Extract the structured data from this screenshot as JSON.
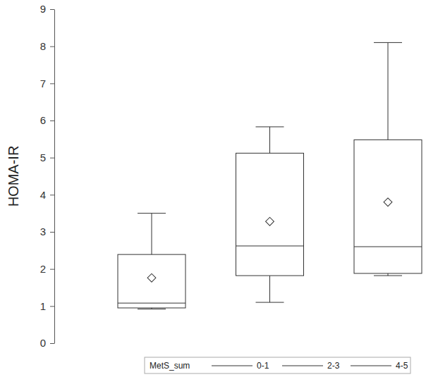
{
  "chart_data": {
    "type": "box",
    "y_label": "HOMA-IR",
    "legend_title": "MetS_sum",
    "categories": [
      "0-1",
      "2-3",
      "4-5"
    ],
    "min": [
      0.92,
      1.1,
      1.82
    ],
    "q1": [
      0.95,
      1.82,
      1.88
    ],
    "median": [
      1.08,
      2.62,
      2.6
    ],
    "q3": [
      2.39,
      5.12,
      5.48
    ],
    "max": [
      3.5,
      5.83,
      8.1
    ],
    "mean": [
      1.76,
      3.28,
      3.8
    ],
    "color": "#333333",
    "marker": "diamond",
    "ylim": [
      0,
      9
    ],
    "yticks": [
      0,
      1,
      2,
      3,
      4,
      5,
      6,
      7,
      8,
      9
    ],
    "legend": "bottom",
    "tick_labels": "y"
  }
}
